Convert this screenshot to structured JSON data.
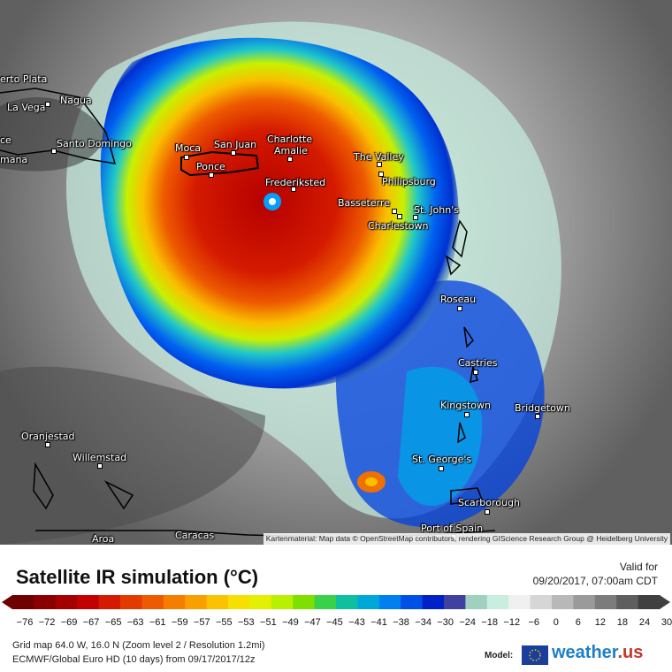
{
  "map": {
    "attribution": "Kartenmaterial: Map data © OpenStreetMap contributors, rendering GIScience Research Group @ Heidelberg University",
    "cities": [
      {
        "name": "Puerto Plata",
        "label": "erto Plata"
      },
      {
        "name": "Nagua",
        "label": "Nagua"
      },
      {
        "name": "La Vega",
        "label": "La Vega"
      },
      {
        "name": "Santo Domingo",
        "label": "Santo Domingo"
      },
      {
        "name": "ce",
        "label": "ce"
      },
      {
        "name": "Romana",
        "label": "mana"
      },
      {
        "name": "Moca",
        "label": "Moca"
      },
      {
        "name": "San Juan",
        "label": "San Juan"
      },
      {
        "name": "Charlotte",
        "label": "Charlotte"
      },
      {
        "name": "Amalie",
        "label": "Amalie"
      },
      {
        "name": "Ponce",
        "label": "Ponce"
      },
      {
        "name": "The Valley",
        "label": "The Valley"
      },
      {
        "name": "Philipsburg",
        "label": "Philipsburg"
      },
      {
        "name": "Frederiksted",
        "label": "Frederiksted"
      },
      {
        "name": "Basseterre",
        "label": "Basseterre"
      },
      {
        "name": "St. John's",
        "label": "St. John's"
      },
      {
        "name": "Charlestown",
        "label": "Charlestown"
      },
      {
        "name": "Roseau",
        "label": "Roseau"
      },
      {
        "name": "Castries",
        "label": "Castries"
      },
      {
        "name": "Kingstown",
        "label": "Kingstown"
      },
      {
        "name": "Bridgetown",
        "label": "Bridgetown"
      },
      {
        "name": "Oranjestad",
        "label": "Oranjestad"
      },
      {
        "name": "Willemstad",
        "label": "Willemstad"
      },
      {
        "name": "St. George's",
        "label": "St. George's"
      },
      {
        "name": "Scarborough",
        "label": "Scarborough"
      },
      {
        "name": "Port of Spain",
        "label": "Port of Spain"
      },
      {
        "name": "Caracas",
        "label": "Caracas"
      },
      {
        "name": "Aroa",
        "label": "Aroa"
      }
    ]
  },
  "legend": {
    "title": "Satellite IR simulation (°C)",
    "valid_label": "Valid for",
    "valid_date": "09/20/2017, 07:00am CDT",
    "ticks": [
      "-76",
      "-72",
      "-69",
      "-67",
      "-65",
      "-63",
      "-61",
      "-59",
      "-57",
      "-55",
      "-53",
      "-51",
      "-49",
      "-47",
      "-45",
      "-43",
      "-41",
      "-38",
      "-34",
      "-30",
      "-24",
      "-18",
      "-12",
      "-6",
      "0",
      "6",
      "12",
      "18",
      "24",
      "30"
    ],
    "colors": [
      "#6e0000",
      "#8a0000",
      "#a50000",
      "#c20000",
      "#d41a00",
      "#e33a00",
      "#ee5a00",
      "#f57d00",
      "#f9a000",
      "#fbc200",
      "#f7e000",
      "#e3f000",
      "#b8f000",
      "#7fe000",
      "#39d04a",
      "#0fc0a0",
      "#00a8d8",
      "#0080f0",
      "#0050e8",
      "#0020c8",
      "#4040a0",
      "#9fd0c0",
      "#c8eee0",
      "#f0f0f0",
      "#d6d6d6",
      "#b8b8b8",
      "#9a9a9a",
      "#7c7c7c",
      "#5e5e5e",
      "#404040"
    ],
    "meta_line1": "Grid map 64.0 W, 16.0 N (Zoom level 2 / Resolution 1.2mi)",
    "meta_line2": "ECMWF/Global Euro HD (10 days) from 09/17/2017/12z",
    "model_label": "Model:",
    "logo_text": "weather",
    "logo_suffix": ".us"
  }
}
